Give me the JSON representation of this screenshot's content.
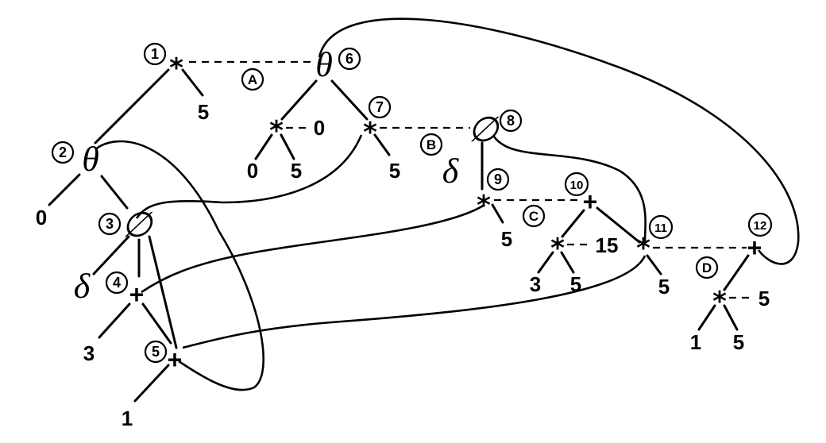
{
  "diagram": {
    "nodes": [
      {
        "id": "1",
        "label": "*"
      },
      {
        "id": "2",
        "label": "θ"
      },
      {
        "id": "3",
        "label": "∅"
      },
      {
        "id": "4",
        "label": "+"
      },
      {
        "id": "5",
        "label": "+"
      },
      {
        "id": "6",
        "label": "θ"
      },
      {
        "id": "7",
        "label": "*"
      },
      {
        "id": "8",
        "label": "∅"
      },
      {
        "id": "9",
        "label": "*"
      },
      {
        "id": "10",
        "label": "+"
      },
      {
        "id": "11",
        "label": "*"
      },
      {
        "id": "12",
        "label": "+"
      }
    ],
    "inner_nodes": [
      {
        "label": "*",
        "value": "0",
        "children": [
          "0",
          "5"
        ]
      },
      {
        "label": "*",
        "value": "15",
        "children": [
          "3",
          "5"
        ]
      },
      {
        "label": "*",
        "value": "5",
        "children": [
          "1",
          "5"
        ]
      }
    ],
    "leaves": {
      "n1_leaf": "5",
      "n2_leaf": "0",
      "n3_delta": "δ",
      "n4_leaf": "3",
      "n5_leaf": "1",
      "n7_leaf": "5",
      "n8_delta": "δ",
      "n9_leaf": "5",
      "n11_leaf": "5"
    },
    "match_labels": [
      "A",
      "B",
      "C",
      "D"
    ]
  }
}
